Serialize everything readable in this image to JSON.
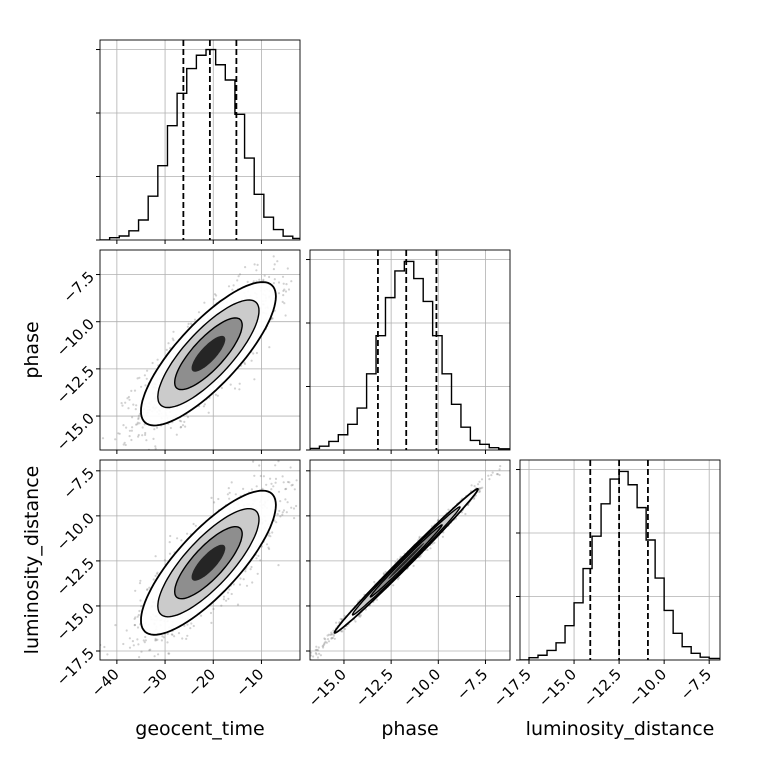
{
  "chart_data": {
    "type": "corner",
    "parameters": [
      "geocent_time",
      "phase",
      "luminosity_distance"
    ],
    "axis_labels": {
      "geocent_time": "geocent_time",
      "phase": "phase",
      "luminosity_distance": "luminosity_distance"
    },
    "ranges": {
      "geocent_time": [
        -43.5,
        -2
      ],
      "phase": [
        -16.8,
        -6.2
      ],
      "luminosity_distance": [
        -18,
        -6.9
      ]
    },
    "ticks": {
      "geocent_time": {
        "values": [
          -40,
          -30,
          -20,
          -10
        ],
        "labels": [
          "−40",
          "−30",
          "−20",
          "−10"
        ]
      },
      "phase": {
        "values": [
          -15,
          -12.5,
          -10,
          -7.5
        ],
        "labels": [
          "−15.0",
          "−12.5",
          "−10.0",
          "−7.5"
        ]
      },
      "luminosity_distance": {
        "values": [
          -17.5,
          -15,
          -12.5,
          -10,
          -7.5
        ],
        "labels": [
          "−17.5",
          "−15.0",
          "−12.5",
          "−10.0",
          "−7.5"
        ]
      }
    },
    "quantiles": {
      "geocent_time": [
        -26.2,
        -20.7,
        -15.2
      ],
      "phase": [
        -13.2,
        -11.7,
        -10.1
      ],
      "luminosity_distance": [
        -14.1,
        -12.5,
        -10.9
      ]
    },
    "grid": true,
    "marginals": [
      {
        "parameter": "geocent_time",
        "bin_edges": [
          -43.5,
          -41.5,
          -39.5,
          -37.5,
          -35.5,
          -33.5,
          -31.5,
          -29.5,
          -27.5,
          -25.5,
          -23.5,
          -21.5,
          -19.5,
          -17.5,
          -15.5,
          -13.5,
          -11.5,
          -9.5,
          -7.5,
          -5.5,
          -3.5,
          -2
        ],
        "counts": [
          0,
          0.012,
          0.021,
          0.048,
          0.105,
          0.23,
          0.39,
          0.6,
          0.77,
          0.9,
          0.97,
          1.0,
          0.92,
          0.84,
          0.66,
          0.43,
          0.24,
          0.12,
          0.055,
          0.02,
          0.008
        ]
      },
      {
        "parameter": "phase",
        "bin_edges": [
          -16.8,
          -16.3,
          -15.8,
          -15.3,
          -14.8,
          -14.3,
          -13.8,
          -13.3,
          -12.8,
          -12.3,
          -11.8,
          -11.3,
          -10.8,
          -10.3,
          -9.8,
          -9.3,
          -8.8,
          -8.3,
          -7.8,
          -7.3,
          -6.8,
          -6.2
        ],
        "counts": [
          0.008,
          0.02,
          0.045,
          0.08,
          0.135,
          0.22,
          0.4,
          0.6,
          0.8,
          0.94,
          0.99,
          0.9,
          0.78,
          0.6,
          0.4,
          0.24,
          0.12,
          0.05,
          0.03,
          0.012,
          0.006
        ]
      },
      {
        "parameter": "luminosity_distance",
        "bin_edges": [
          -18,
          -17.5,
          -17,
          -16.5,
          -16,
          -15.5,
          -15,
          -14.5,
          -14,
          -13.5,
          -13,
          -12.5,
          -12,
          -11.5,
          -11,
          -10.5,
          -10,
          -9.5,
          -9,
          -8.5,
          -8,
          -7.5,
          -6.9
        ],
        "counts": [
          0,
          0.012,
          0.025,
          0.05,
          0.09,
          0.18,
          0.3,
          0.48,
          0.65,
          0.82,
          0.95,
          0.99,
          0.92,
          0.8,
          0.63,
          0.43,
          0.26,
          0.14,
          0.07,
          0.035,
          0.015,
          0.008
        ]
      }
    ],
    "joint_2d": [
      {
        "x": "geocent_time",
        "y": "phase",
        "center": [
          -21,
          -11.7
        ],
        "sigma": [
          7,
          1.9
        ],
        "rho": 0.8
      },
      {
        "x": "geocent_time",
        "y": "luminosity_distance",
        "center": [
          -21,
          -12.6
        ],
        "sigma": [
          7,
          2.0
        ],
        "rho": 0.8
      },
      {
        "x": "phase",
        "y": "luminosity_distance",
        "center": [
          -11.7,
          -12.5
        ],
        "sigma": [
          1.9,
          2.0
        ],
        "rho": 0.995
      }
    ]
  }
}
